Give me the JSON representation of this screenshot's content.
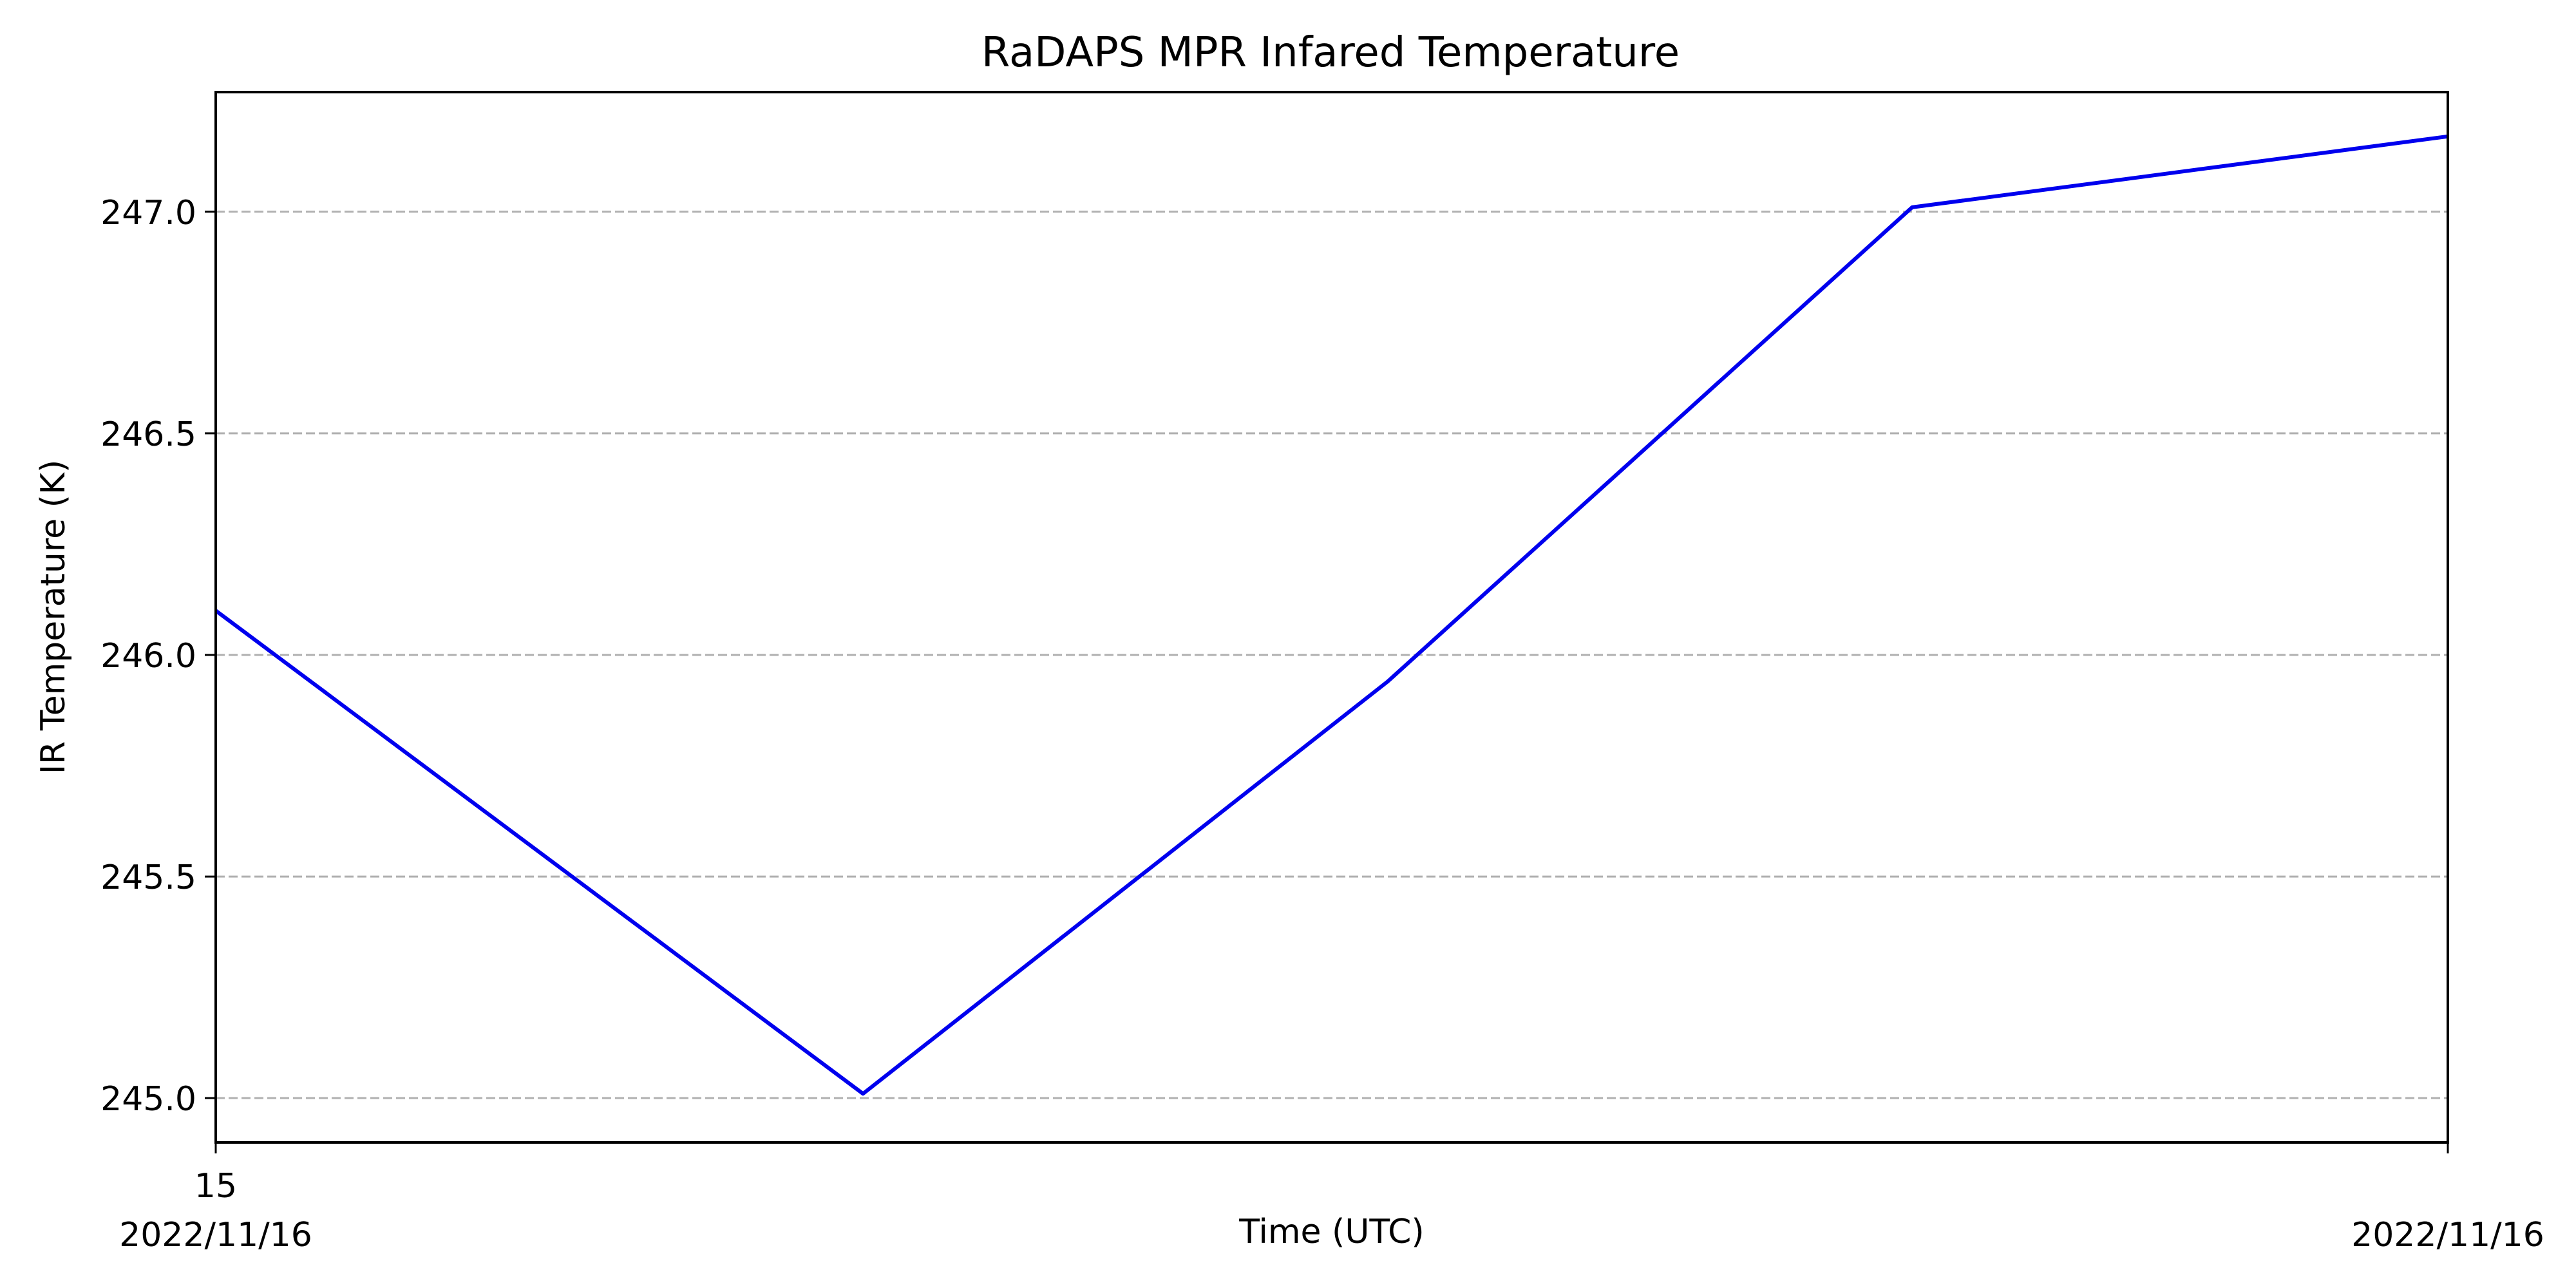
{
  "chart_data": {
    "type": "line",
    "title": "RaDAPS MPR Infared Temperature",
    "xlabel": "Time (UTC)",
    "ylabel": "IR Temperature (K)",
    "x_ticks": [
      {
        "line1": "15",
        "line2": "2022/11/16"
      },
      {
        "line1": "",
        "line2": "2022/11/16"
      }
    ],
    "y_ticks": [
      "245.0",
      "245.5",
      "246.0",
      "246.5",
      "247.0"
    ],
    "ylim": [
      244.9,
      247.27
    ],
    "grid": "y-dashed",
    "series": [
      {
        "color": "#0000ee",
        "x": [
          0,
          0.29,
          0.525,
          0.76,
          1.0
        ],
        "values": [
          246.1,
          245.01,
          245.94,
          247.01,
          247.17
        ]
      }
    ]
  }
}
